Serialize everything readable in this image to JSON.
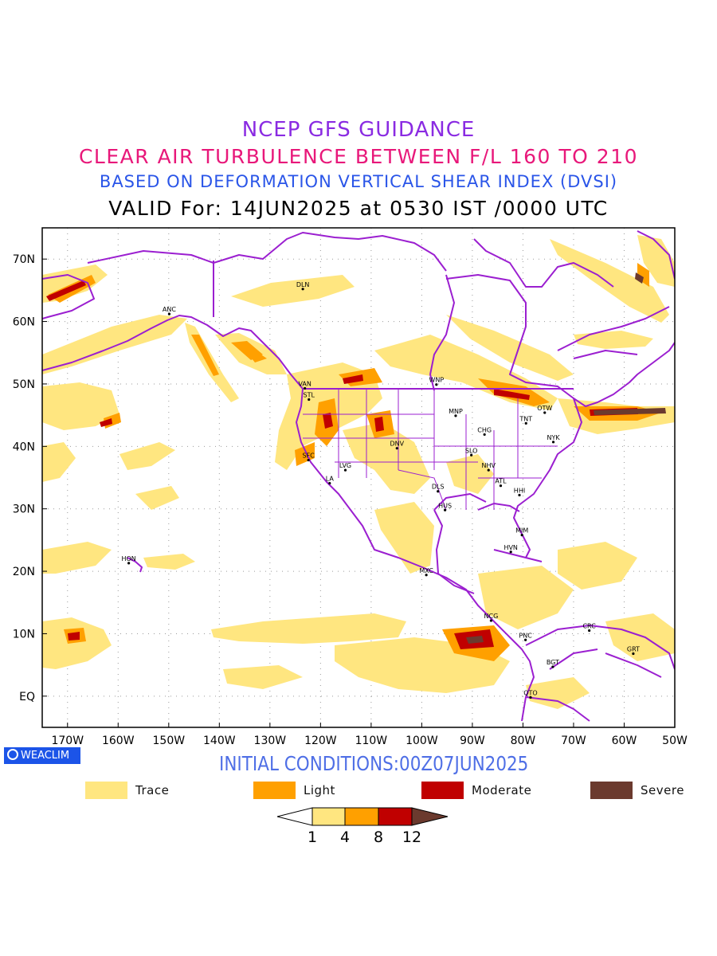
{
  "titles": {
    "line1": "NCEP GFS GUIDANCE",
    "line2": "CLEAR AIR TURBULENCE BETWEEN F/L 160 TO 210",
    "line3": "BASED ON DEFORMATION VERTICAL SHEAR INDEX (DVSI)",
    "line4": "VALID For: 14JUN2025 at 0530 IST /0000 UTC"
  },
  "colors": {
    "title1": "#8a2be2",
    "title2": "#e8187a",
    "title3": "#2a55e8",
    "coast": "#9b1fd0",
    "trace": "#ffe680",
    "light": "#ffa000",
    "moderate": "#c00000",
    "severe": "#6b3a2e"
  },
  "map": {
    "lon_range": [
      -175,
      -50
    ],
    "lat_range": [
      -5,
      75
    ],
    "x_ticks": [
      "170W",
      "160W",
      "150W",
      "140W",
      "130W",
      "120W",
      "110W",
      "100W",
      "90W",
      "80W",
      "70W",
      "60W",
      "50W"
    ],
    "y_ticks": [
      "EQ",
      "10N",
      "20N",
      "30N",
      "40N",
      "50N",
      "60N",
      "70N"
    ],
    "stations": [
      {
        "code": "DLN",
        "lon": -123.5,
        "lat": 65.2
      },
      {
        "code": "ANC",
        "lon": -149.9,
        "lat": 61.2
      },
      {
        "code": "VAN",
        "lon": -123.1,
        "lat": 49.3
      },
      {
        "code": "STL",
        "lon": -122.3,
        "lat": 47.5
      },
      {
        "code": "WNP",
        "lon": -97.1,
        "lat": 49.9
      },
      {
        "code": "MNP",
        "lon": -93.3,
        "lat": 44.9
      },
      {
        "code": "TNT",
        "lon": -79.4,
        "lat": 43.7
      },
      {
        "code": "OTW",
        "lon": -75.7,
        "lat": 45.4
      },
      {
        "code": "CHG",
        "lon": -87.6,
        "lat": 41.9
      },
      {
        "code": "NYK",
        "lon": -74.0,
        "lat": 40.7
      },
      {
        "code": "DNV",
        "lon": -104.9,
        "lat": 39.7
      },
      {
        "code": "SFC",
        "lon": -122.4,
        "lat": 37.8
      },
      {
        "code": "SLO",
        "lon": -90.2,
        "lat": 38.6
      },
      {
        "code": "LVG",
        "lon": -115.1,
        "lat": 36.2
      },
      {
        "code": "NHV",
        "lon": -86.8,
        "lat": 36.2
      },
      {
        "code": "LA",
        "lon": -118.2,
        "lat": 34.1
      },
      {
        "code": "ATL",
        "lon": -84.4,
        "lat": 33.7
      },
      {
        "code": "DLS",
        "lon": -96.8,
        "lat": 32.8
      },
      {
        "code": "HHI",
        "lon": -80.7,
        "lat": 32.2
      },
      {
        "code": "HUS",
        "lon": -95.4,
        "lat": 29.8
      },
      {
        "code": "MIM",
        "lon": -80.2,
        "lat": 25.8
      },
      {
        "code": "HVN",
        "lon": -82.4,
        "lat": 23.1
      },
      {
        "code": "HON",
        "lon": -157.9,
        "lat": 21.3
      },
      {
        "code": "MXC",
        "lon": -99.1,
        "lat": 19.4
      },
      {
        "code": "NCG",
        "lon": -86.3,
        "lat": 12.1
      },
      {
        "code": "CRC",
        "lon": -66.9,
        "lat": 10.5
      },
      {
        "code": "PNC",
        "lon": -79.5,
        "lat": 9.0
      },
      {
        "code": "GRT",
        "lon": -58.2,
        "lat": 6.8
      },
      {
        "code": "BGT",
        "lon": -74.1,
        "lat": 4.7
      },
      {
        "code": "QTO",
        "lon": -78.5,
        "lat": -0.2
      }
    ]
  },
  "badge": {
    "label": "WEACLIM"
  },
  "initial": "INITIAL CONDITIONS:00Z07JUN2025",
  "legend": [
    {
      "label": "Trace",
      "color": "#ffe680"
    },
    {
      "label": "Light",
      "color": "#ffa000"
    },
    {
      "label": "Moderate",
      "color": "#c00000"
    },
    {
      "label": "Severe",
      "color": "#6b3a2e"
    }
  ],
  "colorbar": {
    "ticks": [
      "1",
      "4",
      "8",
      "12"
    ],
    "colors": [
      "#ffffff",
      "#ffe680",
      "#ffa000",
      "#c00000",
      "#6b3a2e"
    ]
  }
}
